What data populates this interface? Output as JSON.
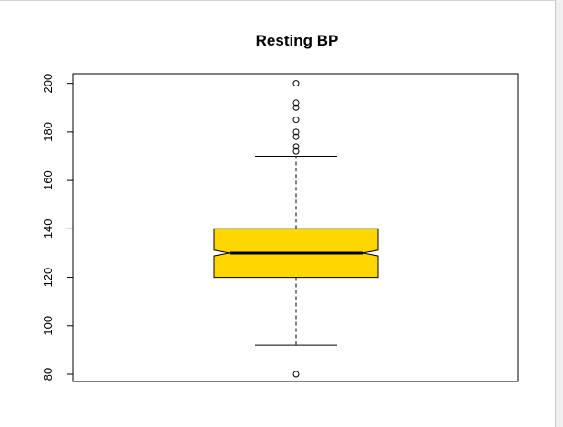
{
  "chart_data": {
    "type": "boxplot",
    "title": "Resting BP",
    "xlabel": "",
    "ylabel": "",
    "ylim": [
      77,
      204
    ],
    "yticks": [
      80,
      100,
      120,
      140,
      160,
      180,
      200
    ],
    "notch": true,
    "grid": false,
    "legend": "none",
    "box": {
      "whisker_low": 92,
      "q1": 120,
      "median": 130,
      "q3": 140,
      "whisker_high": 170,
      "notch_low": 128.8,
      "notch_high": 131.2,
      "outliers": [
        80,
        172,
        174,
        178,
        180,
        185,
        190,
        192,
        200
      ]
    },
    "colors": {
      "box_fill": "#FFD700",
      "stroke": "#000000"
    }
  }
}
